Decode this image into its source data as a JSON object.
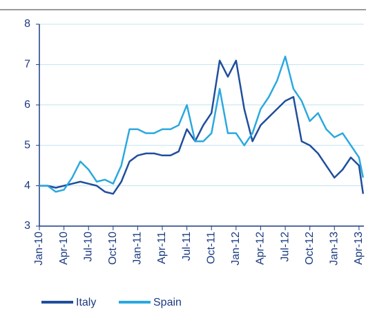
{
  "chart_data": {
    "type": "line",
    "x": [
      0,
      1,
      2,
      3,
      4,
      5,
      6,
      7,
      8,
      9,
      10,
      11,
      12,
      13,
      14,
      15,
      16,
      17,
      18,
      19,
      20,
      21,
      22,
      23,
      24,
      25,
      26,
      27,
      28,
      29,
      30,
      31,
      32,
      33,
      34,
      35,
      36,
      37,
      38,
      39,
      39.5
    ],
    "series": [
      {
        "name": "Italy",
        "color": "#1f4e9c",
        "values": [
          4.0,
          4.0,
          3.95,
          4.0,
          4.05,
          4.1,
          4.05,
          4.0,
          3.85,
          3.8,
          4.1,
          4.6,
          4.75,
          4.8,
          4.8,
          4.75,
          4.75,
          4.85,
          5.4,
          5.1,
          5.5,
          5.8,
          7.1,
          6.7,
          7.1,
          5.9,
          5.1,
          5.5,
          5.7,
          5.9,
          6.1,
          6.2,
          5.1,
          5.0,
          4.8,
          4.5,
          4.2,
          4.4,
          4.7,
          4.5,
          3.8
        ]
      },
      {
        "name": "Spain",
        "color": "#2aa8e0",
        "values": [
          4.0,
          4.0,
          3.85,
          3.9,
          4.2,
          4.6,
          4.4,
          4.1,
          4.15,
          4.05,
          4.5,
          5.4,
          5.4,
          5.3,
          5.3,
          5.4,
          5.4,
          5.5,
          6.0,
          5.1,
          5.1,
          5.3,
          6.4,
          5.3,
          5.3,
          5.0,
          5.3,
          5.9,
          6.2,
          6.6,
          7.2,
          6.4,
          6.1,
          5.6,
          5.8,
          5.4,
          5.2,
          5.3,
          5.0,
          4.7,
          4.2
        ]
      }
    ],
    "xlim": [
      0,
      39.6
    ],
    "xticks": [
      {
        "value": 0,
        "label": "Jan-10"
      },
      {
        "value": 3,
        "label": "Apr-10"
      },
      {
        "value": 6,
        "label": "Jul-10"
      },
      {
        "value": 9,
        "label": "Oct-10"
      },
      {
        "value": 12,
        "label": "Jan-11"
      },
      {
        "value": 15,
        "label": "Apr-11"
      },
      {
        "value": 18,
        "label": "Jul-11"
      },
      {
        "value": 21,
        "label": "Oct-11"
      },
      {
        "value": 24,
        "label": "Jan-12"
      },
      {
        "value": 27,
        "label": "Apr-12"
      },
      {
        "value": 30,
        "label": "Jul-12"
      },
      {
        "value": 33,
        "label": "Oct-12"
      },
      {
        "value": 36,
        "label": "Jan-13"
      },
      {
        "value": 39,
        "label": "Apr-13"
      }
    ],
    "ylim": [
      3,
      8
    ],
    "yticks": [
      3,
      4,
      5,
      6,
      7,
      8
    ],
    "grid": true
  }
}
